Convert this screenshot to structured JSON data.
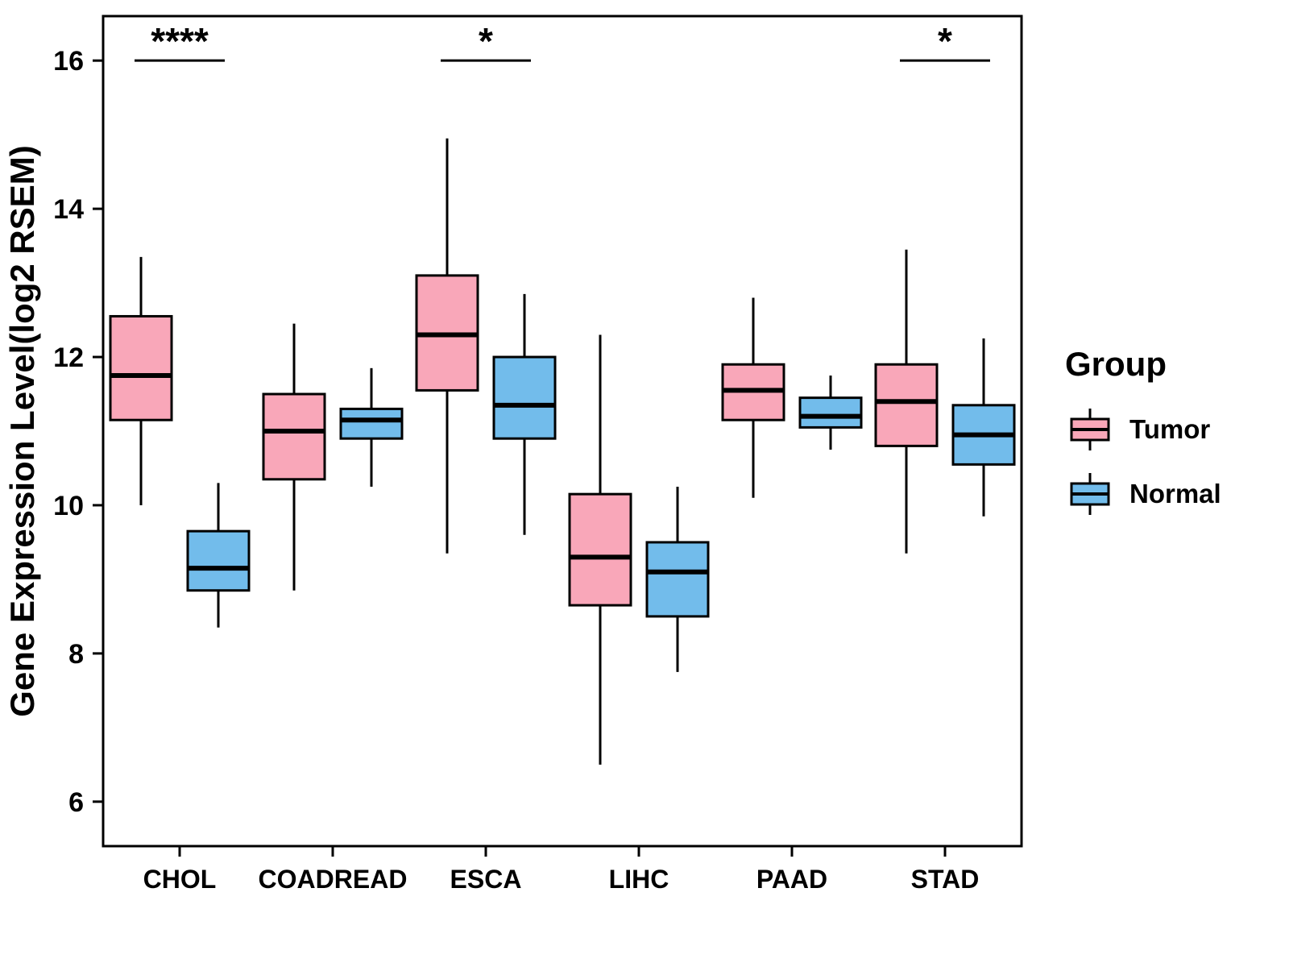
{
  "chart_data": {
    "type": "boxplot",
    "title": "",
    "xlabel": "",
    "ylabel": "Gene Expression Level(log2 RSEM)",
    "ylim": [
      5.4,
      16.6
    ],
    "yticks": [
      6,
      8,
      10,
      12,
      14,
      16
    ],
    "grid": false,
    "legend_position": "right",
    "categories": [
      "CHOL",
      "COADREAD",
      "ESCA",
      "LIHC",
      "PAAD",
      "STAD"
    ],
    "series": [
      {
        "name": "Tumor",
        "color": "#F9A7B9",
        "boxes": [
          {
            "low": 10.0,
            "q1": 11.15,
            "median": 11.75,
            "q3": 12.55,
            "high": 13.35
          },
          {
            "low": 8.85,
            "q1": 10.35,
            "median": 11.0,
            "q3": 11.5,
            "high": 12.45
          },
          {
            "low": 9.35,
            "q1": 11.55,
            "median": 12.3,
            "q3": 13.1,
            "high": 14.95
          },
          {
            "low": 6.5,
            "q1": 8.65,
            "median": 9.3,
            "q3": 10.15,
            "high": 12.3
          },
          {
            "low": 10.1,
            "q1": 11.15,
            "median": 11.55,
            "q3": 11.9,
            "high": 12.8
          },
          {
            "low": 9.35,
            "q1": 10.8,
            "median": 11.4,
            "q3": 11.9,
            "high": 13.45
          }
        ]
      },
      {
        "name": "Normal",
        "color": "#72BCEB",
        "boxes": [
          {
            "low": 8.35,
            "q1": 8.85,
            "median": 9.15,
            "q3": 9.65,
            "high": 10.3
          },
          {
            "low": 10.25,
            "q1": 10.9,
            "median": 11.15,
            "q3": 11.3,
            "high": 11.85
          },
          {
            "low": 9.6,
            "q1": 10.9,
            "median": 11.35,
            "q3": 12.0,
            "high": 12.85
          },
          {
            "low": 7.75,
            "q1": 8.5,
            "median": 9.1,
            "q3": 9.5,
            "high": 10.25
          },
          {
            "low": 10.75,
            "q1": 11.05,
            "median": 11.2,
            "q3": 11.45,
            "high": 11.75
          },
          {
            "low": 9.85,
            "q1": 10.55,
            "median": 10.95,
            "q3": 11.35,
            "high": 12.25
          }
        ]
      }
    ],
    "significance": [
      {
        "category": "CHOL",
        "label": "****",
        "y": 16.0
      },
      {
        "category": "ESCA",
        "label": "*",
        "y": 16.0
      },
      {
        "category": "STAD",
        "label": "*",
        "y": 16.0
      }
    ],
    "legend": {
      "title": "Group",
      "entries": [
        "Tumor",
        "Normal"
      ]
    }
  }
}
